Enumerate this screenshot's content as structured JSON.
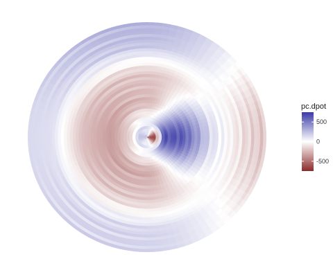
{
  "chart_data": {
    "type": "heatmap",
    "subtype": "polar raster",
    "title": "",
    "xlabel": "",
    "ylabel": "",
    "grid": false,
    "axes_visible": false,
    "legend_placement": "right",
    "fill_variable": "pc.dpot",
    "colorbar": {
      "title": "pc.dpot",
      "ticks": [
        500,
        0,
        -500
      ],
      "tick_labels": [
        "500",
        "0",
        "-500"
      ],
      "range": [
        -750,
        750
      ],
      "low_color": "#8b2a2a",
      "mid_color": "#ffffff",
      "high_color": "#3a3aa6"
    },
    "field_description_values": {
      "rings": [
        {
          "radius_fraction": 0.07,
          "values_by_direction": {
            "east": -600,
            "north": 120,
            "west": 220,
            "south": 80
          }
        },
        {
          "radius_fraction": 0.14,
          "values_by_direction": {
            "east": 650,
            "north": 60,
            "west": -150,
            "south": 40
          }
        },
        {
          "radius_fraction": 0.3,
          "values_by_direction": {
            "east": 620,
            "north": -250,
            "west": -350,
            "south": -300
          }
        },
        {
          "radius_fraction": 0.55,
          "values_by_direction": {
            "east": 120,
            "north": -200,
            "west": -220,
            "south": -180
          }
        },
        {
          "radius_fraction": 0.8,
          "values_by_direction": {
            "east": -120,
            "north": 220,
            "west": 120,
            "south": 150
          }
        },
        {
          "radius_fraction": 0.98,
          "values_by_direction": {
            "east": -200,
            "north": 280,
            "west": 140,
            "south": 160
          }
        }
      ]
    }
  }
}
